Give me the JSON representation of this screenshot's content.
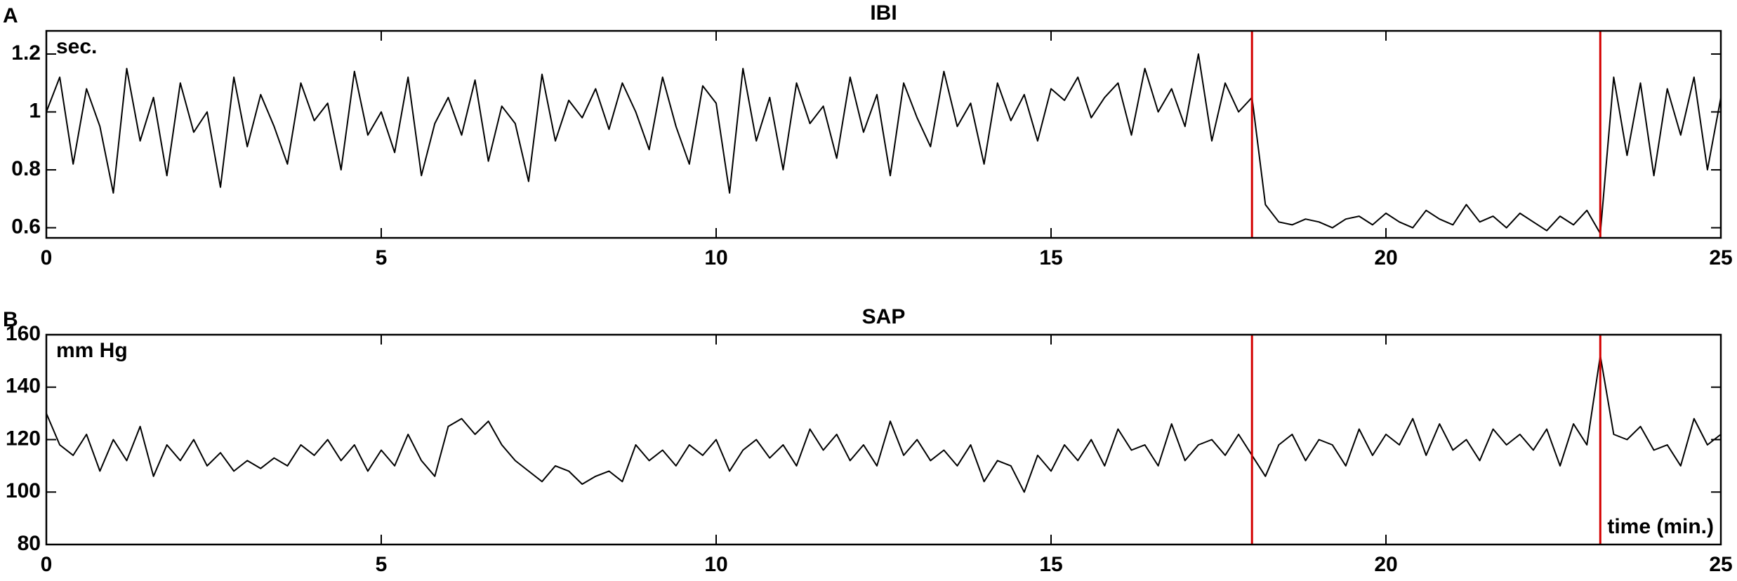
{
  "chart_data": [
    {
      "type": "line",
      "panel_label": "A",
      "title": "IBI",
      "y_label": "sec.",
      "x": [
        0,
        0.2,
        0.4,
        0.6,
        0.8,
        1,
        1.2,
        1.4,
        1.6,
        1.8,
        2,
        2.2,
        2.4,
        2.6,
        2.8,
        3,
        3.2,
        3.4,
        3.6,
        3.8,
        4,
        4.2,
        4.4,
        4.6,
        4.8,
        5,
        5.2,
        5.4,
        5.6,
        5.8,
        6,
        6.2,
        6.4,
        6.6,
        6.8,
        7,
        7.2,
        7.4,
        7.6,
        7.8,
        8,
        8.2,
        8.4,
        8.6,
        8.8,
        9,
        9.2,
        9.4,
        9.6,
        9.8,
        10,
        10.2,
        10.4,
        10.6,
        10.8,
        11,
        11.2,
        11.4,
        11.6,
        11.8,
        12,
        12.2,
        12.4,
        12.6,
        12.8,
        13,
        13.2,
        13.4,
        13.6,
        13.8,
        14,
        14.2,
        14.4,
        14.6,
        14.8,
        15,
        15.2,
        15.4,
        15.6,
        15.8,
        16,
        16.2,
        16.4,
        16.6,
        16.8,
        17,
        17.2,
        17.4,
        17.6,
        17.8,
        18,
        18.2,
        18.4,
        18.6,
        18.8,
        19,
        19.2,
        19.4,
        19.6,
        19.8,
        20,
        20.2,
        20.4,
        20.6,
        20.8,
        21,
        21.2,
        21.4,
        21.6,
        21.8,
        22,
        22.2,
        22.4,
        22.6,
        22.8,
        23,
        23.2,
        23.4,
        23.6,
        23.8,
        24,
        24.2,
        24.4,
        24.6,
        24.8,
        25
      ],
      "series": [
        {
          "color": "#000000",
          "values": [
            1.0,
            1.12,
            0.82,
            1.08,
            0.95,
            0.72,
            1.15,
            0.9,
            1.05,
            0.78,
            1.1,
            0.93,
            1.0,
            0.74,
            1.12,
            0.88,
            1.06,
            0.95,
            0.82,
            1.1,
            0.97,
            1.03,
            0.8,
            1.14,
            0.92,
            1.0,
            0.86,
            1.12,
            0.78,
            0.96,
            1.05,
            0.92,
            1.11,
            0.83,
            1.02,
            0.96,
            0.76,
            1.13,
            0.9,
            1.04,
            0.98,
            1.08,
            0.94,
            1.1,
            1.0,
            0.87,
            1.12,
            0.95,
            0.82,
            1.09,
            1.03,
            0.72,
            1.15,
            0.9,
            1.05,
            0.8,
            1.1,
            0.96,
            1.02,
            0.84,
            1.12,
            0.93,
            1.06,
            0.78,
            1.1,
            0.98,
            0.88,
            1.14,
            0.95,
            1.03,
            0.82,
            1.1,
            0.97,
            1.06,
            0.9,
            1.08,
            1.04,
            1.12,
            0.98,
            1.05,
            1.1,
            0.92,
            1.15,
            1.0,
            1.08,
            0.95,
            1.2,
            0.9,
            1.1,
            1.0,
            1.05,
            0.68,
            0.62,
            0.61,
            0.63,
            0.62,
            0.6,
            0.63,
            0.64,
            0.61,
            0.65,
            0.62,
            0.6,
            0.66,
            0.63,
            0.61,
            0.68,
            0.62,
            0.64,
            0.6,
            0.65,
            0.62,
            0.59,
            0.64,
            0.61,
            0.66,
            0.58,
            1.12,
            0.85,
            1.1,
            0.78,
            1.08,
            0.92,
            1.12,
            0.8,
            1.05
          ]
        }
      ],
      "markers": {
        "color": "#d40000",
        "values": [
          18,
          23.2
        ]
      },
      "xlim": [
        0,
        25
      ],
      "xticks": [
        0,
        5,
        10,
        15,
        20,
        25
      ],
      "ylim": [
        0.565,
        1.28
      ],
      "yticks": [
        0.6,
        0.8,
        1,
        1.2
      ]
    },
    {
      "type": "line",
      "panel_label": "B",
      "title": "SAP",
      "y_label": "mm Hg",
      "annotation": "time (min.)",
      "x": [
        0,
        0.2,
        0.4,
        0.6,
        0.8,
        1,
        1.2,
        1.4,
        1.6,
        1.8,
        2,
        2.2,
        2.4,
        2.6,
        2.8,
        3,
        3.2,
        3.4,
        3.6,
        3.8,
        4,
        4.2,
        4.4,
        4.6,
        4.8,
        5,
        5.2,
        5.4,
        5.6,
        5.8,
        6,
        6.2,
        6.4,
        6.6,
        6.8,
        7,
        7.2,
        7.4,
        7.6,
        7.8,
        8,
        8.2,
        8.4,
        8.6,
        8.8,
        9,
        9.2,
        9.4,
        9.6,
        9.8,
        10,
        10.2,
        10.4,
        10.6,
        10.8,
        11,
        11.2,
        11.4,
        11.6,
        11.8,
        12,
        12.2,
        12.4,
        12.6,
        12.8,
        13,
        13.2,
        13.4,
        13.6,
        13.8,
        14,
        14.2,
        14.4,
        14.6,
        14.8,
        15,
        15.2,
        15.4,
        15.6,
        15.8,
        16,
        16.2,
        16.4,
        16.6,
        16.8,
        17,
        17.2,
        17.4,
        17.6,
        17.8,
        18,
        18.2,
        18.4,
        18.6,
        18.8,
        19,
        19.2,
        19.4,
        19.6,
        19.8,
        20,
        20.2,
        20.4,
        20.6,
        20.8,
        21,
        21.2,
        21.4,
        21.6,
        21.8,
        22,
        22.2,
        22.4,
        22.6,
        22.8,
        23,
        23.2,
        23.4,
        23.6,
        23.8,
        24,
        24.2,
        24.4,
        24.6,
        24.8,
        25
      ],
      "series": [
        {
          "color": "#000000",
          "values": [
            130,
            118,
            114,
            122,
            108,
            120,
            112,
            125,
            106,
            118,
            112,
            120,
            110,
            115,
            108,
            112,
            109,
            113,
            110,
            118,
            114,
            120,
            112,
            118,
            108,
            116,
            110,
            122,
            112,
            106,
            125,
            128,
            122,
            127,
            118,
            112,
            108,
            104,
            110,
            108,
            103,
            106,
            108,
            104,
            118,
            112,
            116,
            110,
            118,
            114,
            120,
            108,
            116,
            120,
            113,
            118,
            110,
            124,
            116,
            122,
            112,
            118,
            110,
            127,
            114,
            120,
            112,
            116,
            110,
            118,
            104,
            112,
            110,
            100,
            114,
            108,
            118,
            112,
            120,
            110,
            124,
            116,
            118,
            110,
            126,
            112,
            118,
            120,
            114,
            122,
            114,
            106,
            118,
            122,
            112,
            120,
            118,
            110,
            124,
            114,
            122,
            118,
            128,
            114,
            126,
            116,
            120,
            112,
            124,
            118,
            122,
            116,
            124,
            110,
            126,
            118,
            152,
            122,
            120,
            125,
            116,
            118,
            110,
            128,
            118,
            122
          ]
        }
      ],
      "markers": {
        "color": "#d40000",
        "values": [
          18,
          23.2
        ]
      },
      "xlim": [
        0,
        25
      ],
      "xticks": [
        0,
        5,
        10,
        15,
        20,
        25
      ],
      "ylim": [
        80,
        160
      ],
      "yticks": [
        80,
        100,
        120,
        140,
        160
      ]
    }
  ]
}
